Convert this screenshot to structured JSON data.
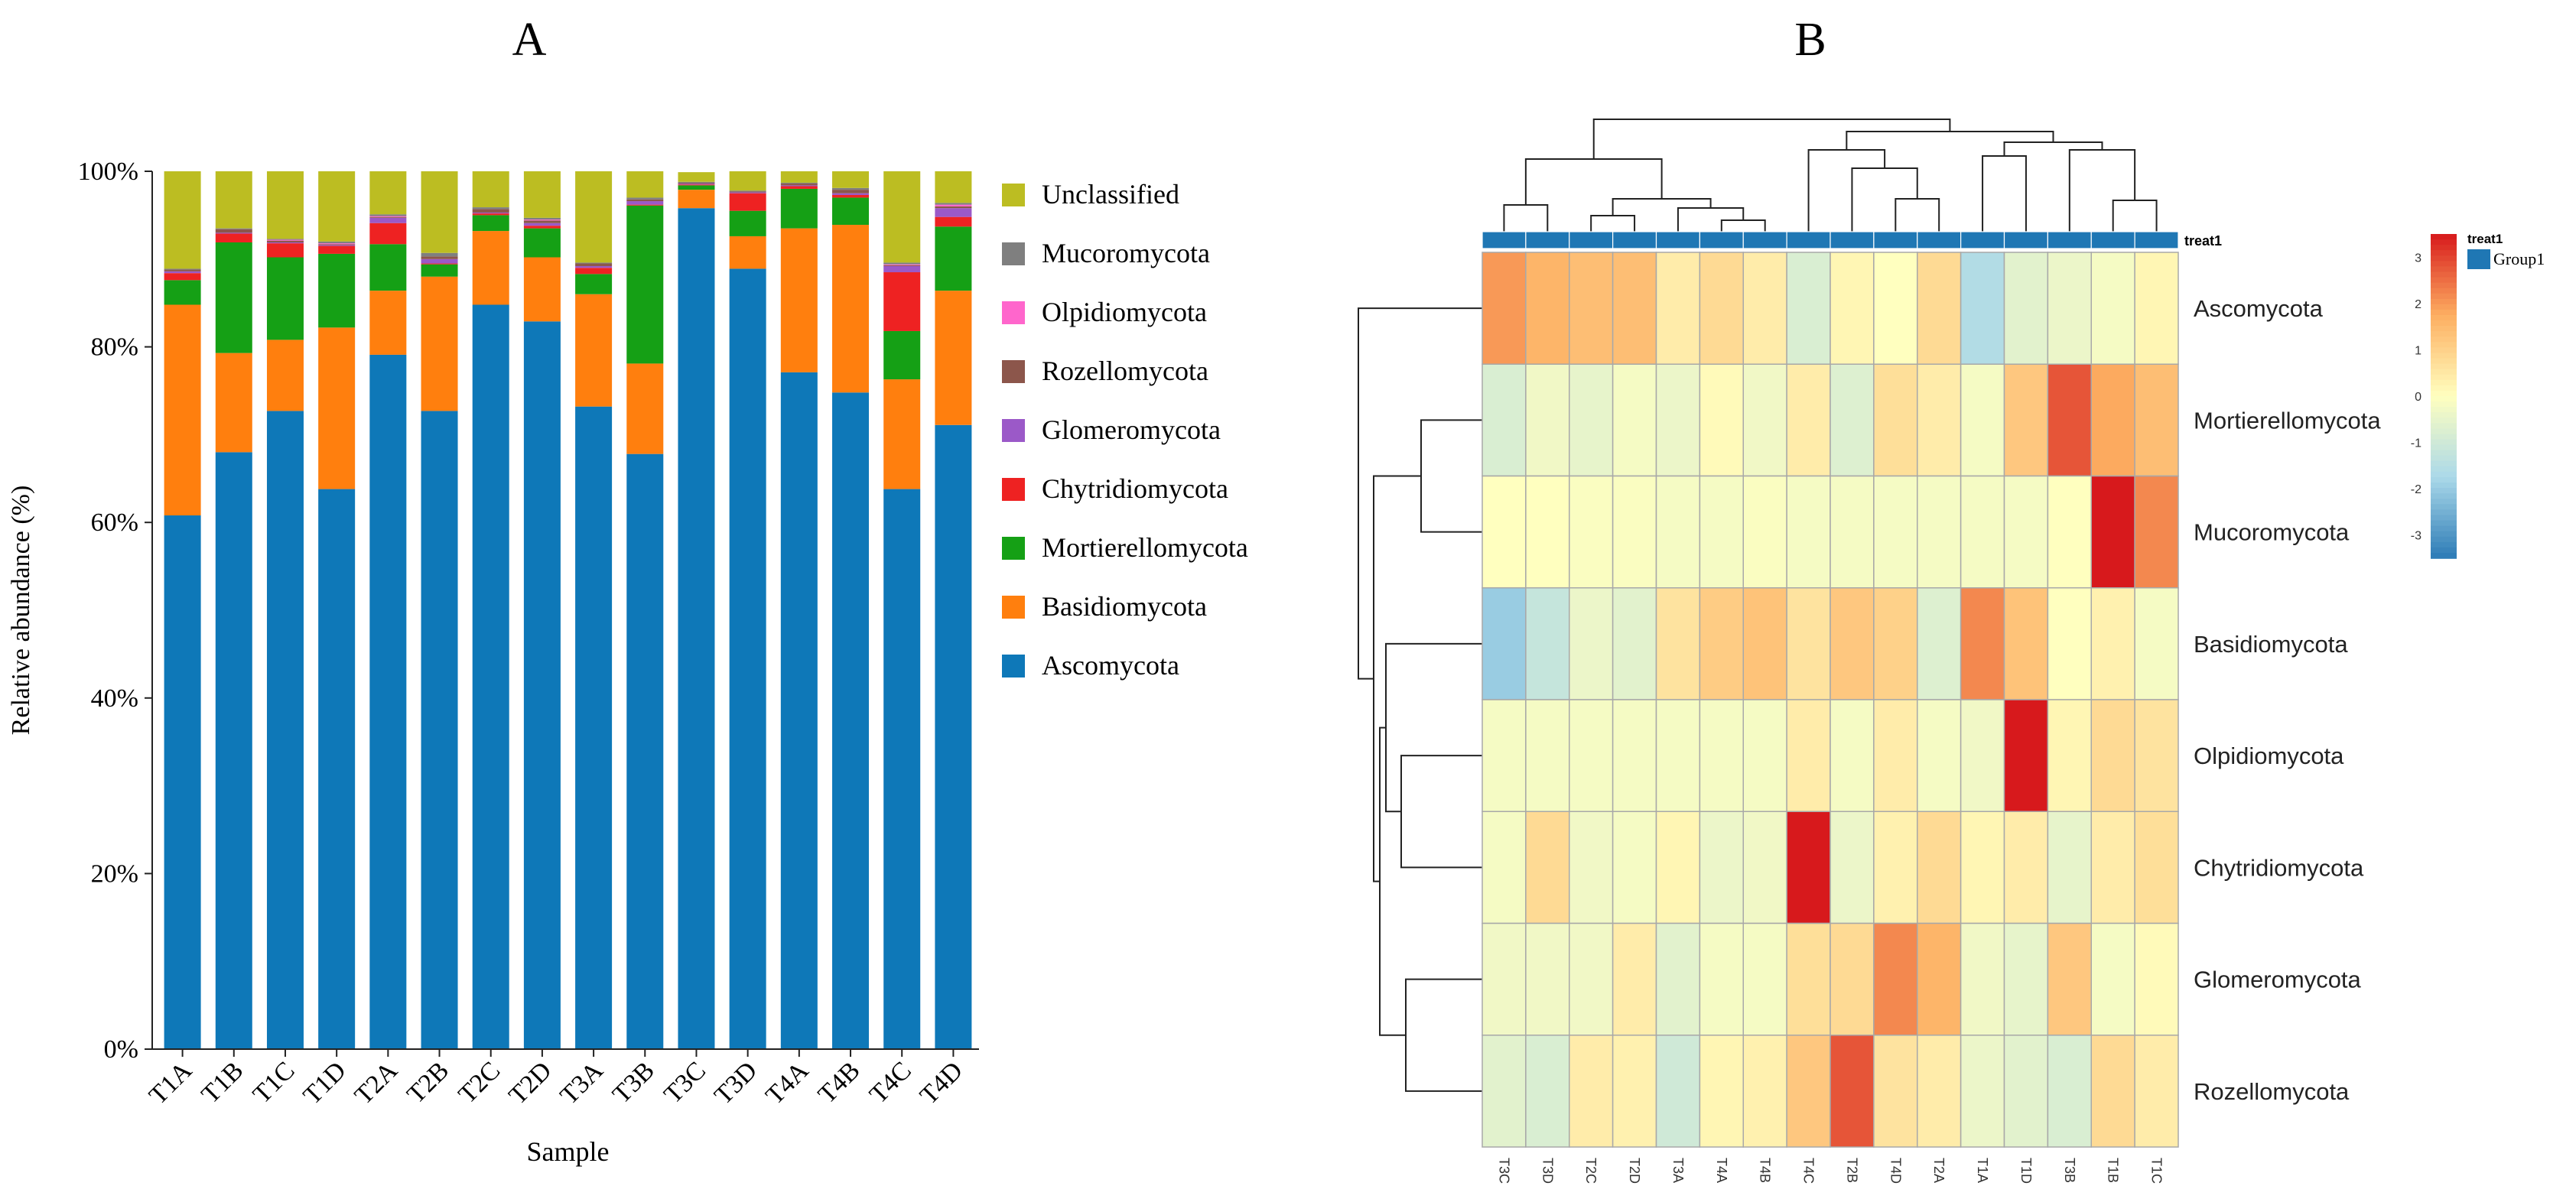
{
  "panel_a_label": "A",
  "panel_b_label": "B",
  "chart_data": [
    {
      "type": "bar",
      "stacked": true,
      "title": "",
      "xlabel": "Sample",
      "ylabel": "Relative abundance (%)",
      "ylim": [
        0,
        100
      ],
      "yticks": [
        "0%",
        "20%",
        "40%",
        "60%",
        "80%",
        "100%"
      ],
      "categories": [
        "T1A",
        "T1B",
        "T1C",
        "T1D",
        "T2A",
        "T2B",
        "T2C",
        "T2D",
        "T3A",
        "T3B",
        "T3C",
        "T3D",
        "T4A",
        "T4B",
        "T4C",
        "T4D"
      ],
      "series": [
        {
          "name": "Ascomycota",
          "color": "#0e78b8",
          "values": [
            60.8,
            68.0,
            72.7,
            63.8,
            79.1,
            72.7,
            84.8,
            82.9,
            73.2,
            67.8,
            95.8,
            88.9,
            77.1,
            74.8,
            63.8,
            71.1
          ]
        },
        {
          "name": "Basidiomycota",
          "color": "#ff7f0e",
          "values": [
            24.0,
            11.3,
            8.1,
            18.4,
            7.3,
            15.3,
            8.4,
            7.3,
            12.8,
            10.3,
            2.1,
            3.7,
            16.4,
            19.1,
            12.5,
            15.3
          ]
        },
        {
          "name": "Mortierellomycota",
          "color": "#15a015",
          "values": [
            2.8,
            12.6,
            9.4,
            8.4,
            5.3,
            1.4,
            1.8,
            3.3,
            2.3,
            18.0,
            0.5,
            2.9,
            4.5,
            3.1,
            5.5,
            7.3
          ]
        },
        {
          "name": "Chytridiomycota",
          "color": "#ee2222",
          "values": [
            0.8,
            1.0,
            1.6,
            0.9,
            2.4,
            0.1,
            0.2,
            0.3,
            0.7,
            0.1,
            0.1,
            2.0,
            0.3,
            0.3,
            6.7,
            1.1
          ]
        },
        {
          "name": "Glomeromycota",
          "color": "#9b59c8",
          "values": [
            0.2,
            0.1,
            0.1,
            0.1,
            0.6,
            0.5,
            0.1,
            0.3,
            0.2,
            0.4,
            0.1,
            0.1,
            0.1,
            0.2,
            0.7,
            1.0
          ]
        },
        {
          "name": "Rozellomycota",
          "color": "#8c564b",
          "values": [
            0.2,
            0.4,
            0.2,
            0.1,
            0.1,
            0.3,
            0.4,
            0.3,
            0.3,
            0.2,
            0.1,
            0.1,
            0.2,
            0.4,
            0.1,
            0.2
          ]
        },
        {
          "name": "Olpidiomycota",
          "color": "#ff66cc",
          "values": [
            0.0,
            0.0,
            0.1,
            0.1,
            0.1,
            0.0,
            0.0,
            0.1,
            0.0,
            0.0,
            0.0,
            0.0,
            0.0,
            0.0,
            0.1,
            0.2
          ]
        },
        {
          "name": "Mucoromycota",
          "color": "#7f7f7f",
          "values": [
            0.1,
            0.1,
            0.1,
            0.2,
            0.2,
            0.4,
            0.2,
            0.2,
            0.1,
            0.2,
            0.1,
            0.1,
            0.1,
            0.2,
            0.2,
            0.2
          ]
        },
        {
          "name": "Unclassified",
          "color": "#bcbd22",
          "values": [
            11.1,
            6.5,
            7.7,
            8.0,
            4.9,
            9.3,
            4.1,
            5.3,
            10.4,
            3.0,
            1.1,
            2.2,
            1.3,
            1.9,
            10.4,
            3.6
          ]
        }
      ],
      "legend_order": [
        "Unclassified",
        "Mucoromycota",
        "Olpidiomycota",
        "Rozellomycota",
        "Glomeromycota",
        "Chytridiomycota",
        "Mortierellomycota",
        "Basidiomycota",
        "Ascomycota"
      ],
      "legend_position": "right"
    },
    {
      "type": "heatmap",
      "title": "",
      "columns": [
        "T3C",
        "T3D",
        "T2C",
        "T2D",
        "T3A",
        "T4A",
        "T4B",
        "T4C",
        "T2B",
        "T4D",
        "T2A",
        "T1A",
        "T1D",
        "T3B",
        "T1B",
        "T1C"
      ],
      "rows": [
        "Ascomycota",
        "Mortierellomycota",
        "Mucoromycota",
        "Basidiomycota",
        "Olpidiomycota",
        "Chytridiomycota",
        "Glomeromycota",
        "Rozellomycota"
      ],
      "values": [
        [
          2.0,
          1.6,
          1.4,
          1.4,
          0.4,
          0.8,
          0.4,
          -0.8,
          0.2,
          0.0,
          0.8,
          -1.6,
          -0.6,
          -0.4,
          -0.2,
          0.2
        ],
        [
          -0.8,
          -0.3,
          -0.5,
          -0.2,
          -0.4,
          0.1,
          -0.3,
          0.4,
          -0.7,
          0.7,
          0.4,
          -0.2,
          1.2,
          2.8,
          1.8,
          1.4
        ],
        [
          0.0,
          0.0,
          -0.1,
          -0.1,
          -0.2,
          -0.2,
          -0.1,
          -0.2,
          -0.2,
          -0.2,
          -0.2,
          -0.2,
          -0.2,
          0.0,
          3.5,
          2.2
        ],
        [
          -2.0,
          -1.2,
          -0.4,
          -0.6,
          0.6,
          1.1,
          1.3,
          0.6,
          1.2,
          1.0,
          -0.7,
          2.2,
          1.3,
          0.0,
          0.3,
          -0.2
        ],
        [
          -0.2,
          -0.2,
          -0.2,
          -0.2,
          -0.2,
          -0.2,
          -0.2,
          0.4,
          -0.2,
          0.4,
          -0.2,
          -0.3,
          3.8,
          0.2,
          0.8,
          0.6
        ],
        [
          -0.2,
          0.8,
          -0.3,
          -0.2,
          0.2,
          -0.4,
          -0.3,
          3.8,
          -0.4,
          0.3,
          0.8,
          0.2,
          0.4,
          -0.5,
          0.4,
          0.7
        ],
        [
          -0.3,
          -0.3,
          -0.3,
          0.4,
          -0.6,
          -0.2,
          -0.2,
          0.7,
          0.8,
          2.2,
          1.6,
          -0.3,
          -0.5,
          1.2,
          -0.2,
          0.1
        ],
        [
          -0.6,
          -0.8,
          0.4,
          0.3,
          -1.0,
          0.2,
          0.3,
          1.2,
          2.8,
          0.6,
          0.4,
          -0.4,
          -0.6,
          -0.8,
          0.8,
          0.4
        ]
      ],
      "color_scale": {
        "min": -3.5,
        "max": 3.5,
        "ticks": [
          "3",
          "2",
          "1",
          "0",
          "-1",
          "-2",
          "-3"
        ],
        "colors": [
          "#2c7bb6",
          "#abd9e9",
          "#ffffbf",
          "#fdae61",
          "#d7191c"
        ]
      },
      "annotation_label": "treat1",
      "annotation_legend_title": "treat1",
      "annotation_groups": [
        {
          "name": "Group1",
          "color": "#1f77b4"
        }
      ],
      "legend_position": "top-right"
    }
  ]
}
